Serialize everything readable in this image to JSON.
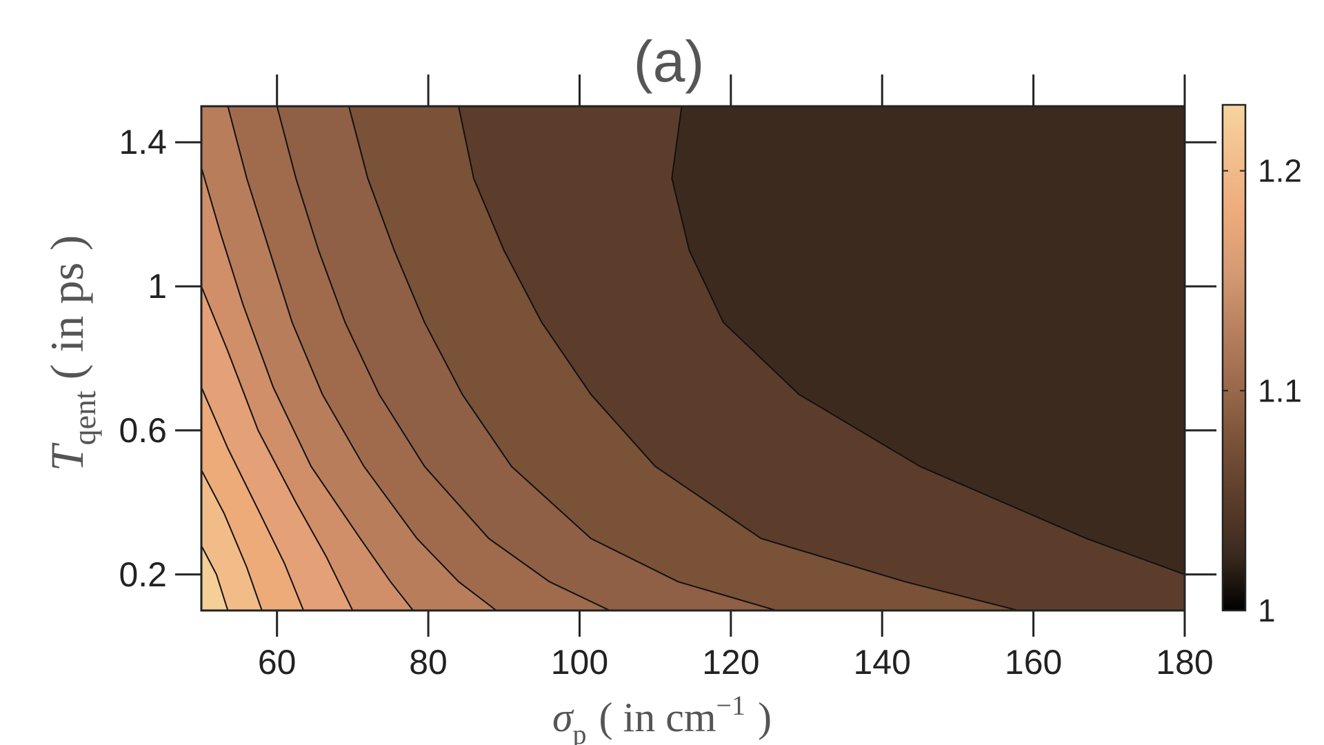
{
  "chart_data": {
    "type": "contour",
    "title": "(a)",
    "xlabel": {
      "symbol": "σ",
      "subscript": "p",
      "unit_text": "( in cm",
      "superscript": "−1",
      "close": ")"
    },
    "ylabel": {
      "symbol": "T",
      "subscript": "qent",
      "unit_text": "( in ps )"
    },
    "xlim": [
      50,
      180
    ],
    "ylim": [
      0.1,
      1.5
    ],
    "xticks": [
      60,
      80,
      100,
      120,
      140,
      160,
      180
    ],
    "yticks": [
      0.2,
      0.6,
      1,
      1.4
    ],
    "xtick_labels": [
      "60",
      "80",
      "100",
      "120",
      "140",
      "160",
      "180"
    ],
    "ytick_labels": [
      "0.2",
      "0.6",
      "1",
      "1.4"
    ],
    "colorbar": {
      "range": [
        1.0,
        1.23
      ],
      "ticks": [
        1.0,
        1.1,
        1.2
      ],
      "tick_labels": [
        "1",
        "1.1",
        "1.2"
      ],
      "colors": [
        "#000000",
        "#3c2a1f",
        "#5c3d2b",
        "#7a5238",
        "#9b6a4b",
        "#b8805e",
        "#d49a73",
        "#ecaa7a",
        "#f2bd8c",
        "#f7d49f"
      ]
    },
    "contour_levels": [
      1.04,
      1.06,
      1.08,
      1.1,
      1.12,
      1.14,
      1.16,
      1.18,
      1.2,
      1.22
    ],
    "level_colors": [
      "#3c2a1f",
      "#5c3d2b",
      "#7a5238",
      "#8f6045",
      "#a06b4d",
      "#b87e5c",
      "#d08f68",
      "#e4a077",
      "#ecab79",
      "#f2bc89",
      "#f4cf97"
    ],
    "contour_lines": [
      {
        "level": 1.04,
        "points": [
          [
            113.5,
            1.5
          ],
          [
            112.2,
            1.3
          ],
          [
            114.5,
            1.1
          ],
          [
            119.0,
            0.9
          ],
          [
            129.0,
            0.7
          ],
          [
            145.0,
            0.5
          ],
          [
            167.0,
            0.3
          ],
          [
            180.0,
            0.2
          ]
        ]
      },
      {
        "level": 1.06,
        "points": [
          [
            84.0,
            1.5
          ],
          [
            86.0,
            1.3
          ],
          [
            90.0,
            1.1
          ],
          [
            95.0,
            0.9
          ],
          [
            101.5,
            0.7
          ],
          [
            110.0,
            0.5
          ],
          [
            124.0,
            0.3
          ],
          [
            143.0,
            0.18
          ],
          [
            158.0,
            0.1
          ]
        ]
      },
      {
        "level": 1.08,
        "points": [
          [
            69.5,
            1.5
          ],
          [
            72.0,
            1.3
          ],
          [
            75.5,
            1.1
          ],
          [
            79.5,
            0.9
          ],
          [
            84.5,
            0.7
          ],
          [
            91.0,
            0.5
          ],
          [
            101.5,
            0.3
          ],
          [
            113.0,
            0.18
          ],
          [
            126.0,
            0.1
          ]
        ]
      },
      {
        "level": 1.1,
        "points": [
          [
            60.0,
            1.5
          ],
          [
            62.5,
            1.3
          ],
          [
            65.5,
            1.1
          ],
          [
            69.0,
            0.9
          ],
          [
            73.5,
            0.7
          ],
          [
            79.5,
            0.5
          ],
          [
            88.0,
            0.3
          ],
          [
            96.0,
            0.18
          ],
          [
            104.0,
            0.1
          ]
        ]
      },
      {
        "level": 1.12,
        "points": [
          [
            53.5,
            1.5
          ],
          [
            56.0,
            1.3
          ],
          [
            59.0,
            1.1
          ],
          [
            62.0,
            0.9
          ],
          [
            66.0,
            0.7
          ],
          [
            71.5,
            0.5
          ],
          [
            78.5,
            0.3
          ],
          [
            84.0,
            0.18
          ],
          [
            89.0,
            0.1
          ]
        ]
      },
      {
        "level": 1.14,
        "points": [
          [
            50.0,
            1.33
          ],
          [
            52.5,
            1.15
          ],
          [
            55.5,
            0.95
          ],
          [
            59.5,
            0.72
          ],
          [
            64.5,
            0.5
          ],
          [
            71.0,
            0.3
          ],
          [
            75.0,
            0.18
          ],
          [
            78.0,
            0.1
          ]
        ]
      },
      {
        "level": 1.16,
        "points": [
          [
            50.0,
            1.0
          ],
          [
            53.5,
            0.82
          ],
          [
            57.5,
            0.6
          ],
          [
            62.5,
            0.4
          ],
          [
            66.5,
            0.25
          ],
          [
            70.0,
            0.1
          ]
        ]
      },
      {
        "level": 1.18,
        "points": [
          [
            50.0,
            0.72
          ],
          [
            53.5,
            0.55
          ],
          [
            57.5,
            0.38
          ],
          [
            61.0,
            0.23
          ],
          [
            63.5,
            0.1
          ]
        ]
      },
      {
        "level": 1.2,
        "points": [
          [
            50.0,
            0.49
          ],
          [
            53.0,
            0.37
          ],
          [
            56.0,
            0.22
          ],
          [
            58.0,
            0.1
          ]
        ]
      },
      {
        "level": 1.22,
        "points": [
          [
            50.0,
            0.28
          ],
          [
            52.0,
            0.2
          ],
          [
            53.5,
            0.1
          ]
        ]
      }
    ]
  }
}
